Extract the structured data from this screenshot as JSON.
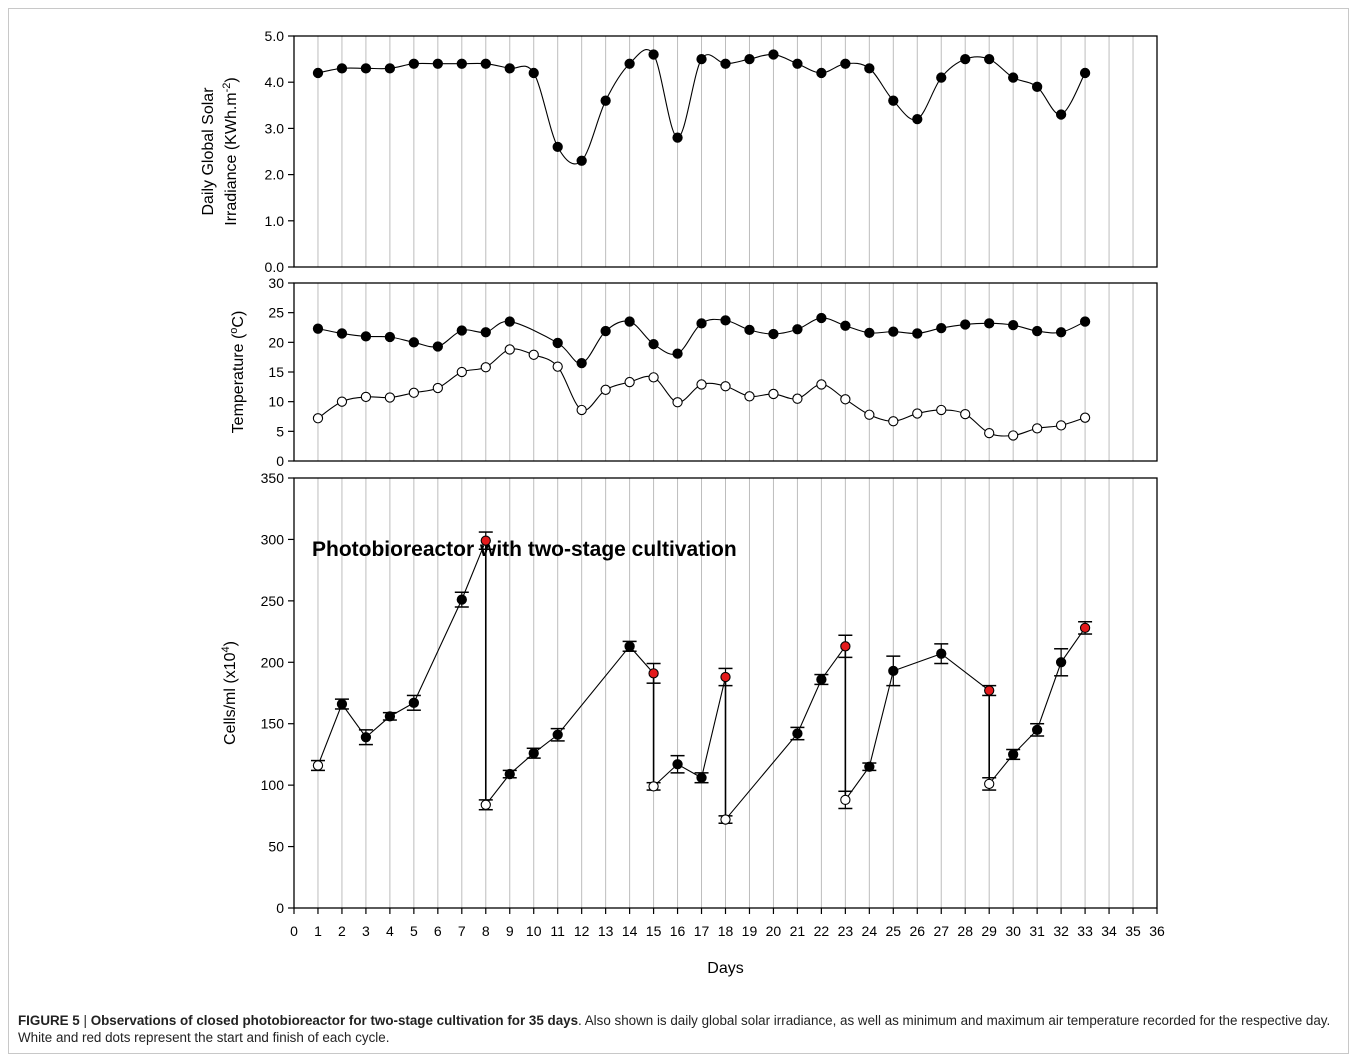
{
  "figure": {
    "caption_label": "FIGURE 5",
    "caption_sep": " | ",
    "caption_title": "Observations of closed photobioreactor for two-stage cultivation for 35 days",
    "caption_text": ". Also shown is daily global solar irradiance, as well as minimum and maximum air temperature recorded for the respective day. White and red dots represent the start and finish of each cycle.",
    "xlabel": "Days"
  },
  "colors": {
    "filled": "#000000",
    "open": "#ffffff",
    "red": "#e41a1c",
    "grid": "#bdbdbd"
  },
  "chart_data": [
    {
      "type": "line",
      "panel": "top",
      "ylabel_line1": "Daily Global Solar",
      "ylabel_line2_a": "Irradiance (KWh.m",
      "ylabel_line2_sup": "-2",
      "ylabel_line2_b": ")",
      "ylim": [
        0,
        5
      ],
      "yticks": [
        "0.0",
        "1.0",
        "2.0",
        "3.0",
        "4.0",
        "5.0"
      ],
      "xlim": [
        0,
        36
      ],
      "grid": "vertical",
      "series": [
        {
          "marker": "filled",
          "x": [
            1,
            2,
            3,
            4,
            5,
            6,
            7,
            8,
            9,
            10,
            11,
            12,
            13,
            14,
            15,
            16,
            17,
            18,
            19,
            20,
            21,
            22,
            23,
            24,
            25,
            26,
            27,
            28,
            29,
            30,
            31,
            32,
            33
          ],
          "y": [
            4.2,
            4.3,
            4.3,
            4.3,
            4.4,
            4.4,
            4.4,
            4.4,
            4.3,
            4.2,
            2.6,
            2.3,
            3.6,
            4.4,
            4.6,
            2.8,
            4.5,
            4.4,
            4.5,
            4.6,
            4.4,
            4.2,
            4.4,
            4.3,
            3.6,
            3.2,
            4.1,
            4.5,
            4.5,
            4.1,
            3.9,
            3.3,
            4.2
          ]
        }
      ]
    },
    {
      "type": "line",
      "panel": "middle",
      "ylabel_a": "Temperature (",
      "ylabel_sup": "o",
      "ylabel_b": "C)",
      "ylim": [
        0,
        30
      ],
      "yticks": [
        "0",
        "5",
        "10",
        "15",
        "20",
        "25",
        "30"
      ],
      "xlim": [
        0,
        36
      ],
      "grid": "vertical",
      "series": [
        {
          "marker": "filled",
          "x": [
            1,
            2,
            3,
            4,
            5,
            6,
            7,
            8,
            9,
            10,
            11,
            12,
            13,
            14,
            15,
            16,
            17,
            18,
            19,
            20,
            21,
            22,
            23,
            24,
            25,
            26,
            27,
            28,
            29,
            30,
            31,
            32,
            33
          ],
          "y": [
            22.3,
            21.5,
            21.0,
            20.9,
            20.0,
            19.3,
            22.0,
            21.7,
            23.5,
            null,
            19.9,
            16.5,
            21.9,
            23.5,
            19.7,
            18.1,
            23.2,
            23.7,
            22.1,
            21.4,
            22.2,
            24.1,
            22.8,
            21.6,
            21.8,
            21.5,
            22.4,
            23.0,
            23.2,
            22.9,
            21.9,
            21.7,
            23.5
          ]
        },
        {
          "marker": "open",
          "x": [
            1,
            2,
            3,
            4,
            5,
            6,
            7,
            8,
            9,
            10,
            11,
            12,
            13,
            14,
            15,
            16,
            17,
            18,
            19,
            20,
            21,
            22,
            23,
            24,
            25,
            26,
            27,
            28,
            29,
            30,
            31,
            32,
            33
          ],
          "y": [
            7.2,
            10.0,
            10.8,
            10.7,
            11.5,
            12.3,
            15.0,
            15.8,
            18.8,
            17.9,
            15.9,
            8.6,
            12.0,
            13.3,
            14.1,
            9.9,
            12.9,
            12.6,
            10.9,
            11.3,
            10.5,
            12.9,
            10.4,
            7.8,
            6.7,
            8.0,
            8.6,
            7.9,
            4.7,
            4.3,
            5.5,
            6.0,
            7.3
          ]
        }
      ]
    },
    {
      "type": "scatter",
      "panel": "bottom",
      "title": "Photobioreactor with two-stage cultivation",
      "ylabel_a": "Cells/ml (x10",
      "ylabel_sup": "4",
      "ylabel_b": ")",
      "ylim": [
        0,
        350
      ],
      "yticks": [
        "0",
        "50",
        "100",
        "150",
        "200",
        "250",
        "300",
        "350"
      ],
      "xlim": [
        0,
        36
      ],
      "xticks": [
        "0",
        "1",
        "2",
        "3",
        "4",
        "5",
        "6",
        "7",
        "8",
        "9",
        "10",
        "11",
        "12",
        "13",
        "14",
        "15",
        "16",
        "17",
        "18",
        "19",
        "20",
        "21",
        "22",
        "23",
        "24",
        "25",
        "26",
        "27",
        "28",
        "29",
        "30",
        "31",
        "32",
        "33",
        "34",
        "35",
        "36"
      ],
      "grid": "vertical",
      "cycles": [
        [
          {
            "x": 1,
            "y": 116,
            "err": 4,
            "marker": "open"
          },
          {
            "x": 2,
            "y": 166,
            "err": 4,
            "marker": "filled"
          },
          {
            "x": 3,
            "y": 139,
            "err": 6,
            "marker": "filled"
          },
          {
            "x": 4,
            "y": 156,
            "err": 3,
            "marker": "filled"
          },
          {
            "x": 5,
            "y": 167,
            "err": 6,
            "marker": "filled"
          },
          {
            "x": 7,
            "y": 251,
            "err": 6,
            "marker": "filled"
          },
          {
            "x": 8,
            "y": 299,
            "err": 7,
            "marker": "red"
          }
        ],
        [
          {
            "x": 8,
            "y": 84,
            "err": 4,
            "marker": "open"
          },
          {
            "x": 9,
            "y": 109,
            "err": 3,
            "marker": "filled"
          },
          {
            "x": 10,
            "y": 126,
            "err": 4,
            "marker": "filled"
          },
          {
            "x": 11,
            "y": 141,
            "err": 5,
            "marker": "filled"
          },
          {
            "x": 14,
            "y": 213,
            "err": 4,
            "marker": "filled"
          },
          {
            "x": 15,
            "y": 191,
            "err": 8,
            "marker": "red"
          }
        ],
        [
          {
            "x": 15,
            "y": 99,
            "err": 3,
            "marker": "open"
          },
          {
            "x": 16,
            "y": 117,
            "err": 7,
            "marker": "filled"
          },
          {
            "x": 17,
            "y": 106,
            "err": 4,
            "marker": "filled"
          },
          {
            "x": 18,
            "y": 188,
            "err": 7,
            "marker": "red"
          }
        ],
        [
          {
            "x": 18,
            "y": 72,
            "err": 3,
            "marker": "open"
          },
          {
            "x": 21,
            "y": 142,
            "err": 5,
            "marker": "filled"
          },
          {
            "x": 22,
            "y": 186,
            "err": 4,
            "marker": "filled"
          },
          {
            "x": 23,
            "y": 213,
            "err": 9,
            "marker": "red"
          }
        ],
        [
          {
            "x": 23,
            "y": 88,
            "err": 7,
            "marker": "open"
          },
          {
            "x": 24,
            "y": 115,
            "err": 3,
            "marker": "filled"
          },
          {
            "x": 25,
            "y": 193,
            "err": 12,
            "marker": "filled"
          },
          {
            "x": 27,
            "y": 207,
            "err": 8,
            "marker": "filled"
          },
          {
            "x": 29,
            "y": 177,
            "err": 4,
            "marker": "red"
          }
        ],
        [
          {
            "x": 29,
            "y": 101,
            "err": 5,
            "marker": "open"
          },
          {
            "x": 30,
            "y": 125,
            "err": 4,
            "marker": "filled"
          },
          {
            "x": 31,
            "y": 145,
            "err": 5,
            "marker": "filled"
          },
          {
            "x": 32,
            "y": 200,
            "err": 11,
            "marker": "filled"
          },
          {
            "x": 33,
            "y": 228,
            "err": 5,
            "marker": "red"
          }
        ]
      ]
    }
  ]
}
